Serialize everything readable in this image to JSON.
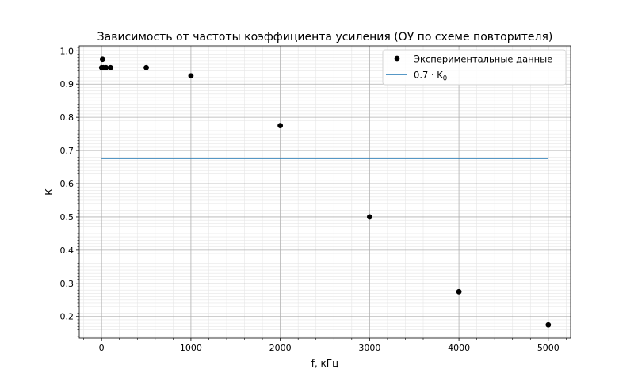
{
  "chart_data": {
    "type": "scatter",
    "title": "Зависимость от частоты коэффициента усиления (ОУ по схеме повторителя)",
    "xlabel": "f, кГц",
    "ylabel": "К",
    "xlim": [
      -250,
      5250
    ],
    "ylim": [
      0.135,
      1.015
    ],
    "xticks": [
      0,
      1000,
      2000,
      3000,
      4000,
      5000
    ],
    "yticks": [
      0.2,
      0.3,
      0.4,
      0.5,
      0.6,
      0.7,
      0.8,
      0.9,
      1.0
    ],
    "xtick_labels": [
      "0",
      "1000",
      "2000",
      "3000",
      "4000",
      "5000"
    ],
    "ytick_labels": [
      "0.2",
      "0.3",
      "0.4",
      "0.5",
      "0.6",
      "0.7",
      "0.8",
      "0.9",
      "1.0"
    ],
    "grid": true,
    "minor_grid": true,
    "legend_position": "top-right",
    "series": [
      {
        "name": "Экспериментальные данные",
        "kind": "scatter",
        "color": "#000000",
        "x": [
          1,
          10,
          20,
          50,
          100,
          500,
          1000,
          2000,
          3000,
          4000,
          5000
        ],
        "y": [
          0.95,
          0.975,
          0.95,
          0.95,
          0.95,
          0.95,
          0.925,
          0.775,
          0.5,
          0.275,
          0.175
        ]
      },
      {
        "name": "0.7 · K",
        "name_subscript": "0",
        "kind": "line",
        "color": "#1f77b4",
        "x": [
          0,
          5000
        ],
        "y": [
          0.6765,
          0.6765
        ]
      }
    ]
  }
}
